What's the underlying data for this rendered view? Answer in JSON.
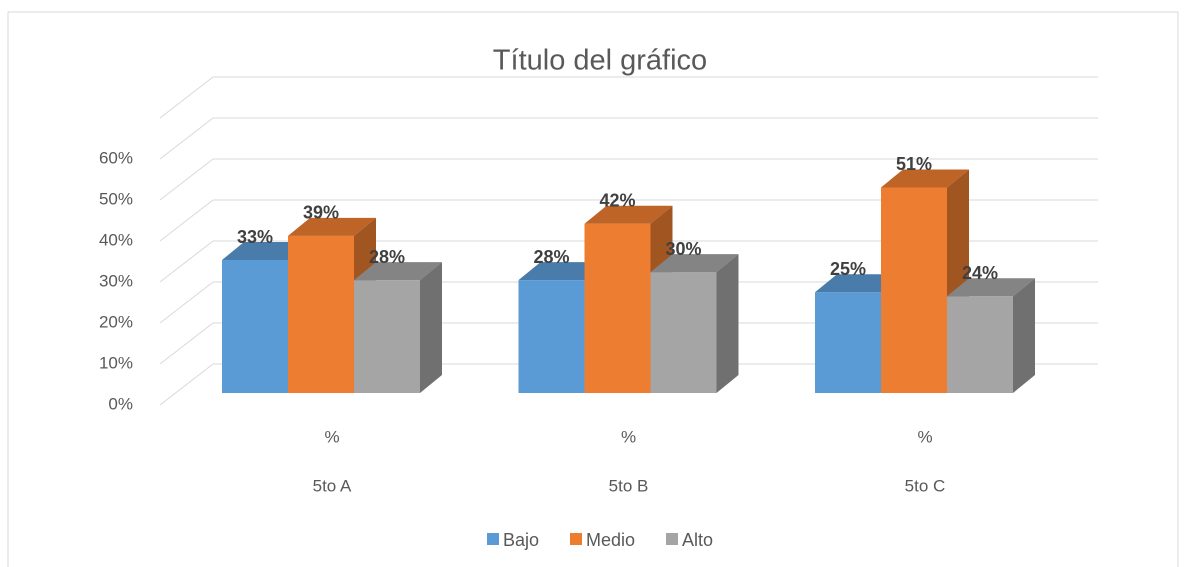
{
  "chart_data": {
    "type": "bar3d",
    "title": "Título del gráfico",
    "categories": [
      "%",
      "%",
      "%"
    ],
    "category_groups": [
      "5to A",
      "5to B",
      "5to C"
    ],
    "series": [
      {
        "name": "Bajo",
        "color": "#5b9bd5",
        "values": [
          33,
          28,
          25
        ],
        "value_labels": [
          "33%",
          "28%",
          "25%"
        ]
      },
      {
        "name": "Medio",
        "color": "#ed7d31",
        "values": [
          39,
          42,
          51
        ],
        "value_labels": [
          "39%",
          "42%",
          "51%"
        ]
      },
      {
        "name": "Alto",
        "color": "#a5a5a5",
        "values": [
          28,
          30,
          24
        ],
        "value_labels": [
          "28%",
          "30%",
          "24%"
        ]
      }
    ],
    "ylim": [
      0,
      70
    ],
    "yticks": [
      {
        "value": 0,
        "label": "0%"
      },
      {
        "value": 10,
        "label": "10%"
      },
      {
        "value": 20,
        "label": "20%"
      },
      {
        "value": 30,
        "label": "30%"
      },
      {
        "value": 40,
        "label": "40%"
      },
      {
        "value": 50,
        "label": "50%"
      },
      {
        "value": 60,
        "label": "60%"
      }
    ],
    "grid": true,
    "legend": "bottom"
  }
}
